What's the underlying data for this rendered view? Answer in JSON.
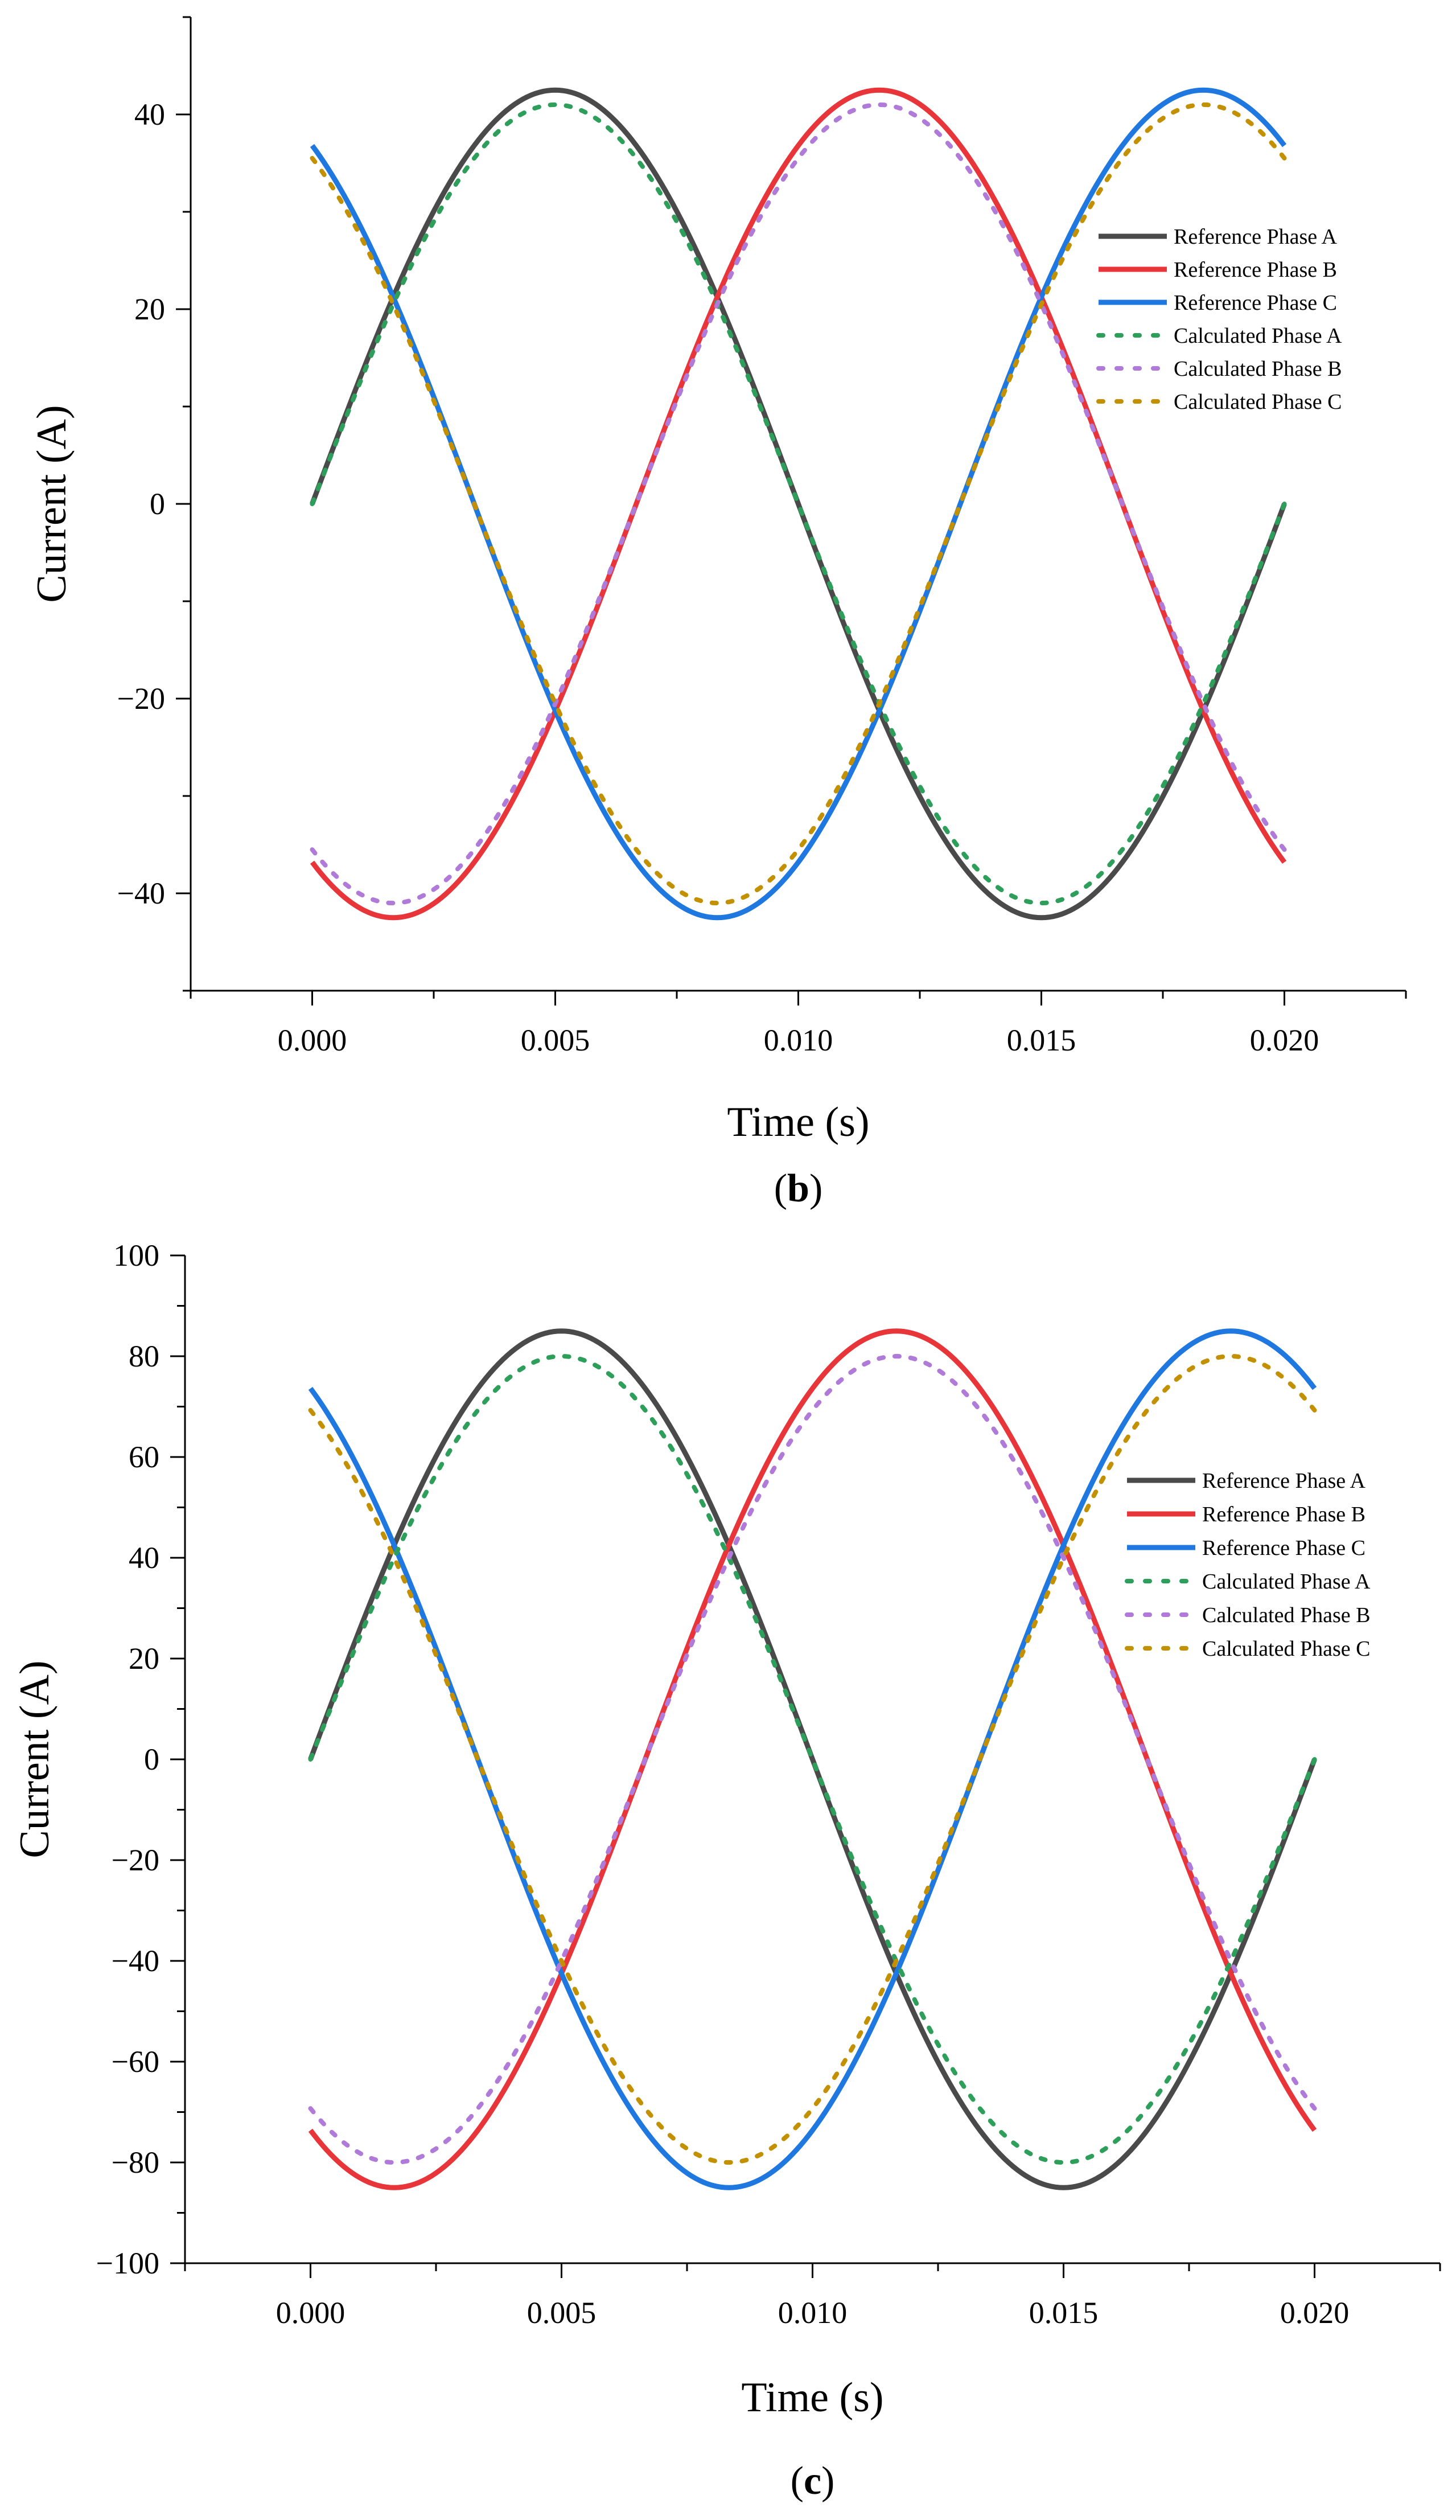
{
  "chart_data": [
    {
      "type": "line",
      "panel_label": "b",
      "xlabel": "Time (s)",
      "ylabel": "Current (A)",
      "xlim": [
        -0.0025,
        0.0225
      ],
      "ylim": [
        -50,
        50
      ],
      "x_ticks": [
        0.0,
        0.005,
        0.01,
        0.015,
        0.02
      ],
      "x_tick_labels": [
        "0.000",
        "0.005",
        "0.010",
        "0.015",
        "0.020"
      ],
      "y_ticks": [
        -40,
        -20,
        0,
        20,
        40
      ],
      "y_tick_labels": [
        "−40",
        "−20",
        "0",
        "20",
        "40"
      ],
      "frequency_hz": 50,
      "legend_position": "upper-right",
      "series": [
        {
          "name": "Reference Phase A",
          "style": "solid",
          "color": "#4a4a4a",
          "amplitude": 42.5,
          "phase_deg": 0
        },
        {
          "name": "Reference Phase B",
          "style": "solid",
          "color": "#e8353a",
          "amplitude": 42.5,
          "phase_deg": -120
        },
        {
          "name": "Reference Phase C",
          "style": "solid",
          "color": "#1f77e0",
          "amplitude": 42.5,
          "phase_deg": 120
        },
        {
          "name": "Calculated Phase A",
          "style": "dotted",
          "color": "#2e9e5b",
          "amplitude": 41.0,
          "phase_deg": 0
        },
        {
          "name": "Calculated Phase B",
          "style": "dotted",
          "color": "#b07ad8",
          "amplitude": 41.0,
          "phase_deg": -120
        },
        {
          "name": "Calculated Phase C",
          "style": "dotted",
          "color": "#c29000",
          "amplitude": 41.0,
          "phase_deg": 120
        }
      ]
    },
    {
      "type": "line",
      "panel_label": "c",
      "xlabel": "Time (s)",
      "ylabel": "Current (A)",
      "xlim": [
        -0.0025,
        0.0225
      ],
      "ylim": [
        -100,
        100
      ],
      "x_ticks": [
        0.0,
        0.005,
        0.01,
        0.015,
        0.02
      ],
      "x_tick_labels": [
        "0.000",
        "0.005",
        "0.010",
        "0.015",
        "0.020"
      ],
      "y_ticks": [
        -100,
        -80,
        -60,
        -40,
        -20,
        0,
        20,
        40,
        60,
        80,
        100
      ],
      "y_tick_labels": [
        "−100",
        "−80",
        "−60",
        "−40",
        "−20",
        "0",
        "20",
        "40",
        "60",
        "80",
        "100"
      ],
      "frequency_hz": 50,
      "legend_position": "right",
      "series": [
        {
          "name": "Reference Phase A",
          "style": "solid",
          "color": "#4a4a4a",
          "amplitude": 85,
          "phase_deg": 0
        },
        {
          "name": "Reference Phase B",
          "style": "solid",
          "color": "#e8353a",
          "amplitude": 85,
          "phase_deg": -120
        },
        {
          "name": "Reference Phase C",
          "style": "solid",
          "color": "#1f77e0",
          "amplitude": 85,
          "phase_deg": 120
        },
        {
          "name": "Calculated Phase A",
          "style": "dotted",
          "color": "#2e9e5b",
          "amplitude": 80,
          "phase_deg": 0
        },
        {
          "name": "Calculated Phase B",
          "style": "dotted",
          "color": "#b07ad8",
          "amplitude": 80,
          "phase_deg": -120
        },
        {
          "name": "Calculated Phase C",
          "style": "dotted",
          "color": "#c29000",
          "amplitude": 80,
          "phase_deg": 120
        }
      ]
    }
  ]
}
